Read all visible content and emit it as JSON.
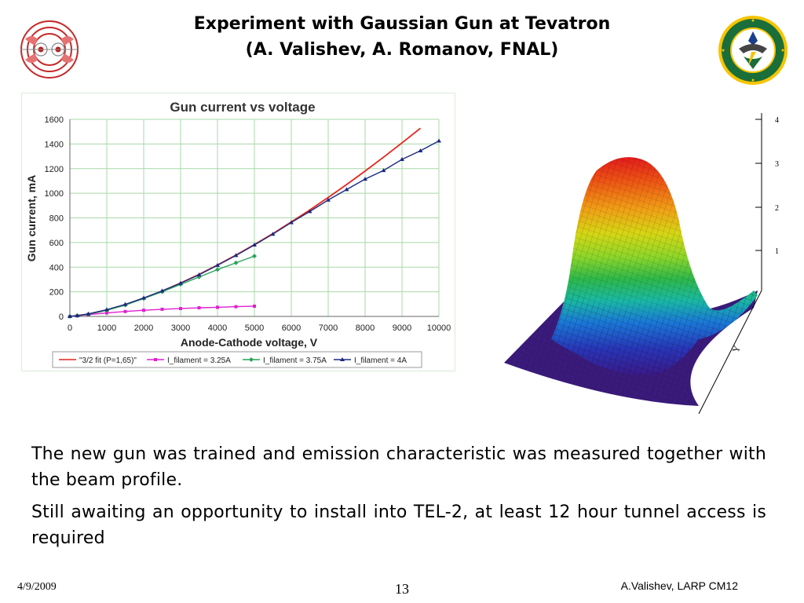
{
  "slide": {
    "title_line1": "Experiment with Gaussian Gun at Tevatron",
    "title_line2": "(A. Valishev, A. Romanov, FNAL)",
    "paragraphs": [
      "The new gun was trained and emission characteristic was measured together with the beam profile.",
      "Still awaiting an opportunity to install into TEL-2, at least 12 hour tunnel access is required"
    ],
    "footer": {
      "date": "4/9/2009",
      "page": "13",
      "author": "A.Valishev, LARP CM12"
    }
  },
  "surface_plot": {
    "z_ticks": [
      "4",
      "3",
      "2",
      "1"
    ],
    "axis_label": "Y"
  },
  "chart_data": {
    "type": "line",
    "title": "Gun current vs voltage",
    "xlabel": "Anode-Cathode voltage, V",
    "ylabel": "Gun current, mA",
    "xlim": [
      0,
      10000
    ],
    "ylim": [
      0,
      1600
    ],
    "x_ticks": [
      0,
      1000,
      2000,
      3000,
      4000,
      5000,
      6000,
      7000,
      8000,
      9000,
      10000
    ],
    "y_ticks": [
      0,
      200,
      400,
      600,
      800,
      1000,
      1200,
      1400,
      1600
    ],
    "grid": true,
    "legend_position": "bottom",
    "series": [
      {
        "name": "\"3/2 fit (P=1,65)\"",
        "color": "#e8241c",
        "marker": "none",
        "x": [
          0,
          500,
          1000,
          1500,
          2000,
          2500,
          3000,
          3500,
          4000,
          4500,
          5000,
          5500,
          6000,
          6500,
          7000,
          7500,
          8000,
          8500,
          9000,
          9500
        ],
        "y": [
          0,
          18,
          52,
          95,
          148,
          206,
          271,
          341,
          417,
          498,
          583,
          672,
          767,
          864,
          966,
          1071,
          1180,
          1293,
          1409,
          1528
        ]
      },
      {
        "name": "I_filament = 3.25A",
        "color": "#e020d0",
        "marker": "square",
        "x": [
          0,
          200,
          500,
          1000,
          1500,
          2000,
          2500,
          3000,
          3500,
          4000,
          4500,
          5000
        ],
        "y": [
          0,
          5,
          15,
          28,
          40,
          50,
          58,
          64,
          70,
          74,
          79,
          83
        ]
      },
      {
        "name": "I_filament = 3.75A",
        "color": "#2aa35a",
        "marker": "diamond",
        "x": [
          0,
          200,
          500,
          1000,
          1500,
          2000,
          2500,
          3000,
          3500,
          4000,
          4500,
          5000
        ],
        "y": [
          0,
          6,
          18,
          50,
          92,
          145,
          200,
          260,
          320,
          380,
          435,
          490
        ]
      },
      {
        "name": "I_filament = 4A",
        "color": "#1c2a80",
        "marker": "triangle",
        "x": [
          0,
          200,
          500,
          1000,
          1500,
          2000,
          2500,
          3000,
          3500,
          4000,
          4500,
          5000,
          5500,
          6000,
          6500,
          7000,
          7500,
          8000,
          8500,
          9000,
          9500,
          10000
        ],
        "y": [
          0,
          6,
          20,
          55,
          98,
          150,
          207,
          270,
          338,
          415,
          495,
          580,
          668,
          762,
          852,
          945,
          1030,
          1115,
          1185,
          1275,
          1345,
          1425
        ]
      }
    ]
  }
}
